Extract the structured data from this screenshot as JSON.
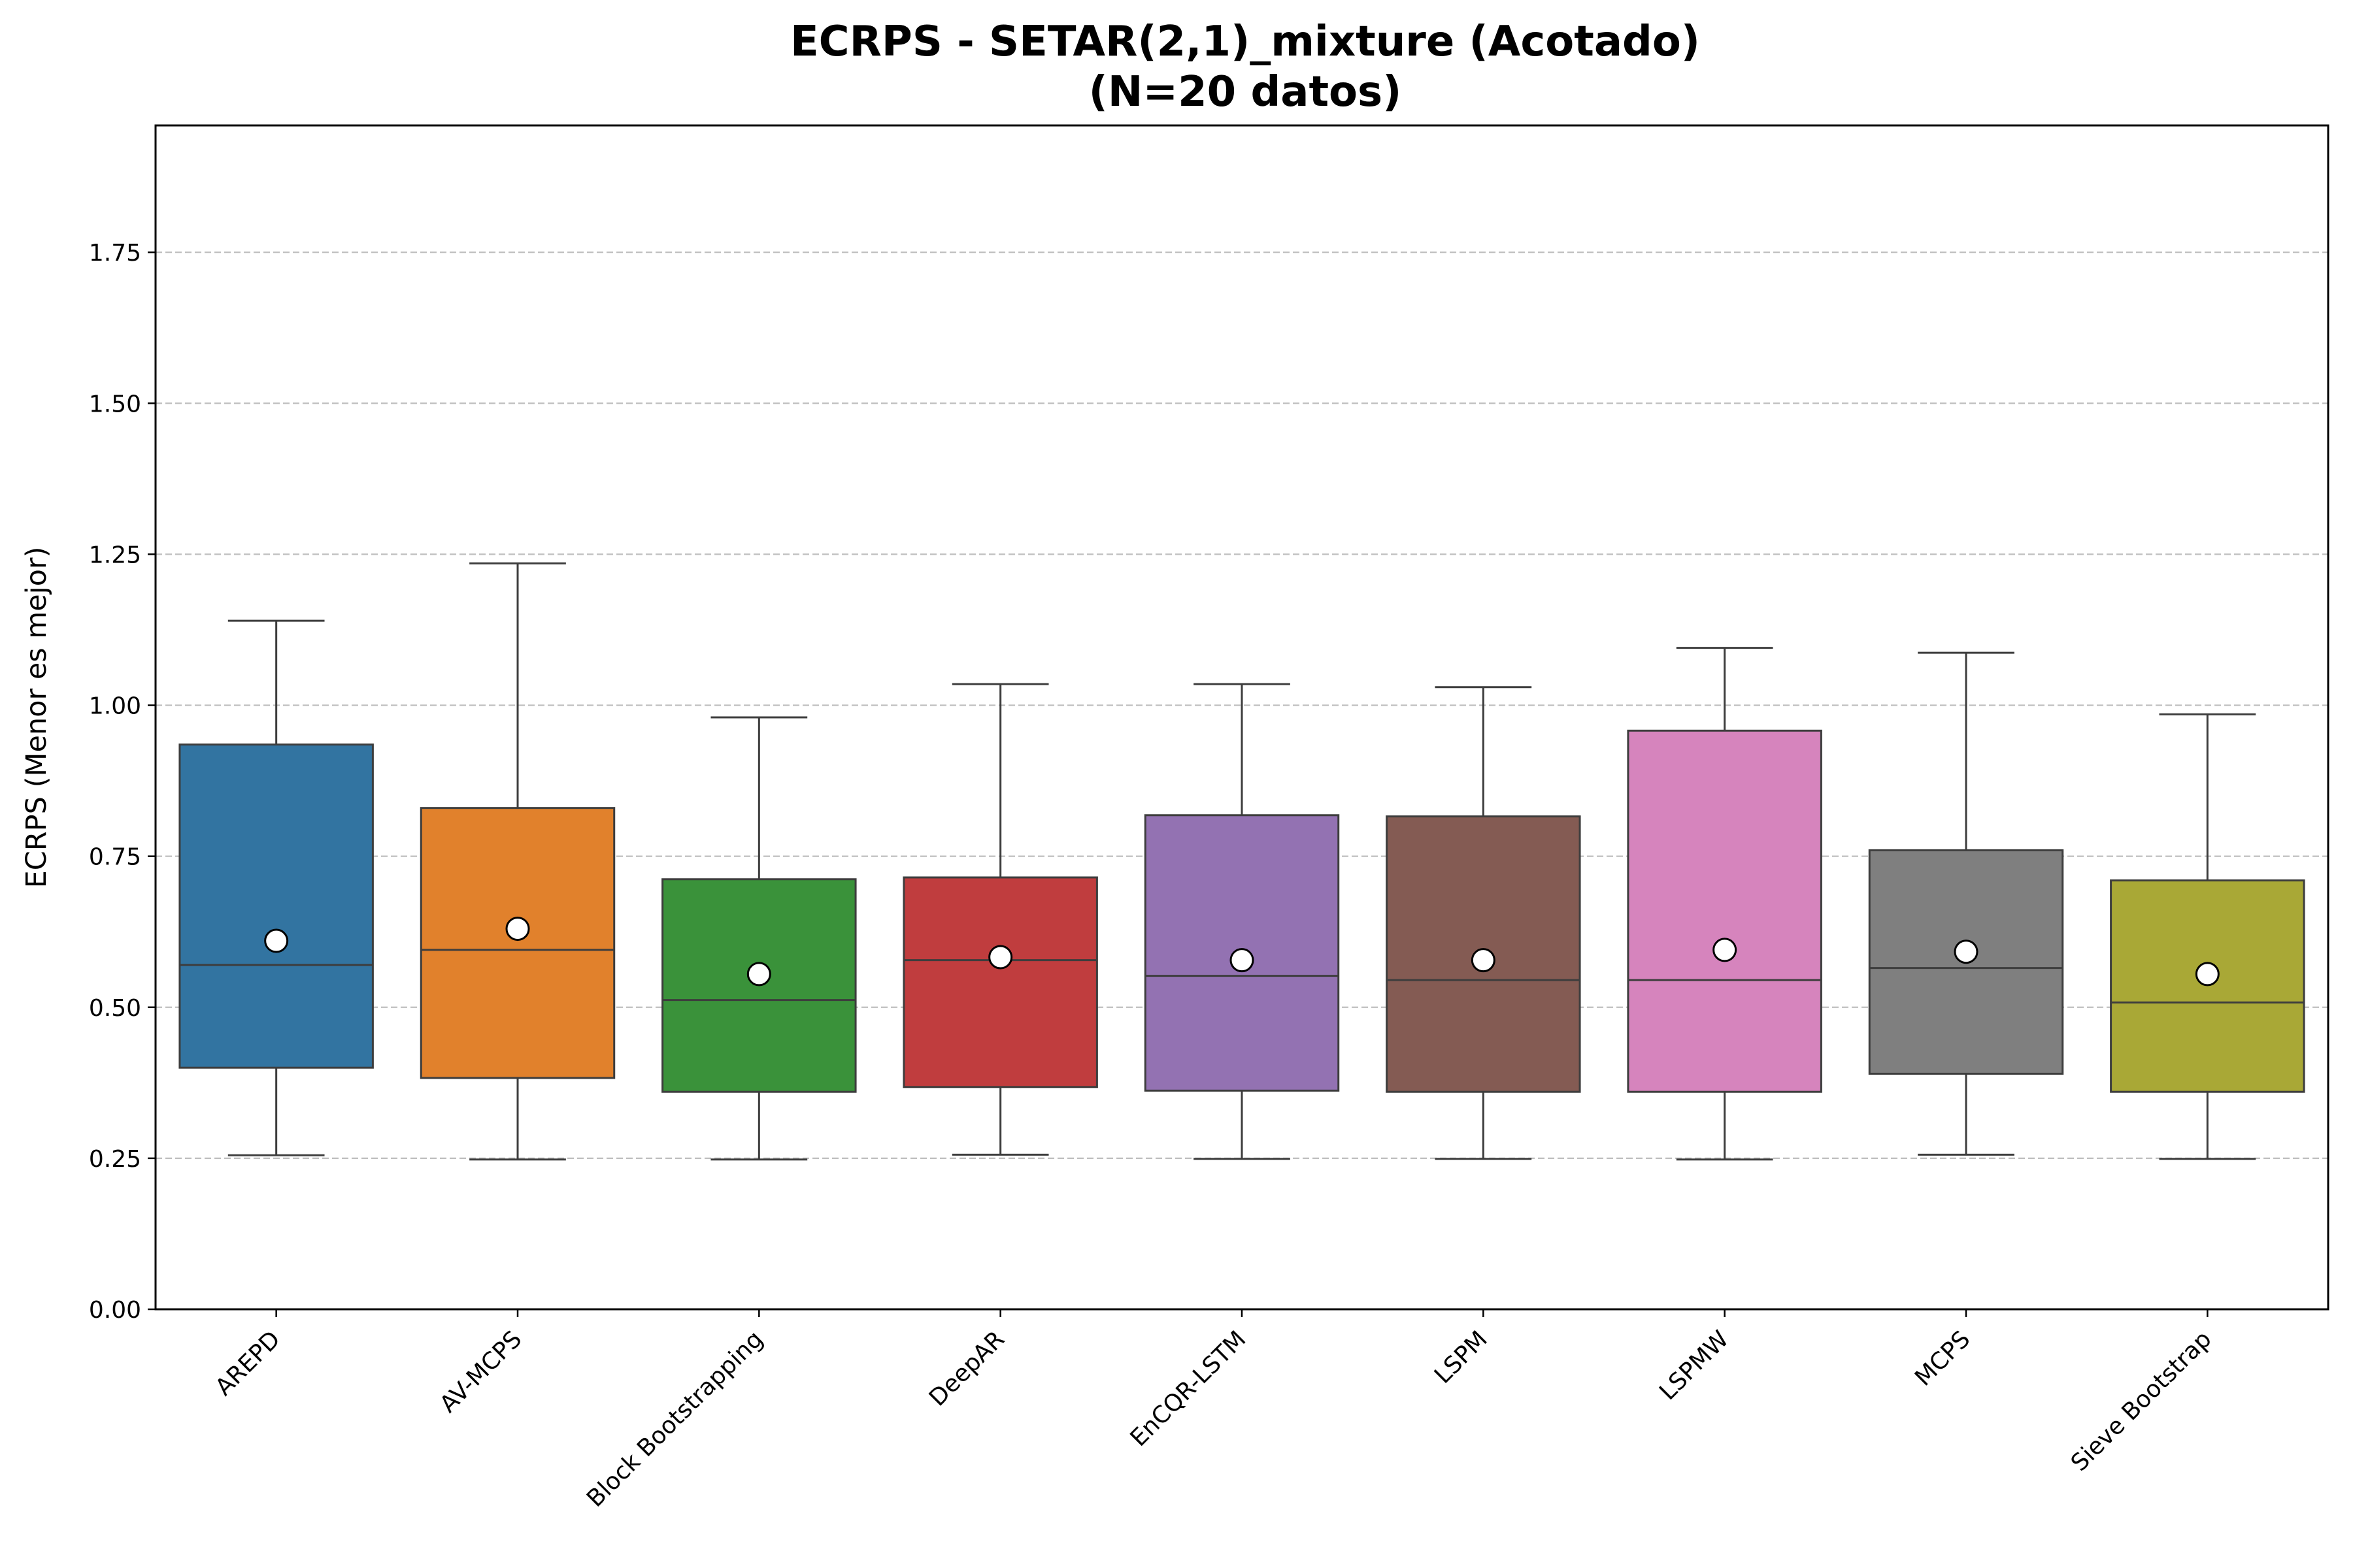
{
  "chart_data": {
    "type": "box",
    "title_line1": "ECRPS - SETAR(2,1)_mixture (Acotado)",
    "title_line2": "(N=20 datos)",
    "xlabel": "",
    "ylabel": "ECRPS (Menor es mejor)",
    "ylim": [
      0,
      1.96
    ],
    "yticks": [
      "0.00",
      "0.25",
      "0.50",
      "0.75",
      "1.00",
      "1.25",
      "1.50",
      "1.75"
    ],
    "grid": "y-dashed",
    "categories": [
      "AREPD",
      "AV-MCPS",
      "Block Bootstrapping",
      "DeepAR",
      "EnCQR-LSTM",
      "LSPM",
      "LSPMW",
      "MCPS",
      "Sieve Bootstrap"
    ],
    "boxes": [
      {
        "whisker_low": 0.255,
        "q1": 0.4,
        "median": 0.57,
        "q3": 0.935,
        "whisker_high": 1.14,
        "mean": 0.61,
        "color": "#3274a1"
      },
      {
        "whisker_low": 0.248,
        "q1": 0.383,
        "median": 0.595,
        "q3": 0.83,
        "whisker_high": 1.235,
        "mean": 0.63,
        "color": "#e1812c"
      },
      {
        "whisker_low": 0.248,
        "q1": 0.36,
        "median": 0.512,
        "q3": 0.712,
        "whisker_high": 0.98,
        "mean": 0.555,
        "color": "#3a923a"
      },
      {
        "whisker_low": 0.256,
        "q1": 0.368,
        "median": 0.578,
        "q3": 0.715,
        "whisker_high": 1.035,
        "mean": 0.583,
        "color": "#c03d3e"
      },
      {
        "whisker_low": 0.249,
        "q1": 0.362,
        "median": 0.552,
        "q3": 0.818,
        "whisker_high": 1.035,
        "mean": 0.578,
        "color": "#9372b2"
      },
      {
        "whisker_low": 0.249,
        "q1": 0.36,
        "median": 0.545,
        "q3": 0.816,
        "whisker_high": 1.03,
        "mean": 0.578,
        "color": "#845b53"
      },
      {
        "whisker_low": 0.248,
        "q1": 0.36,
        "median": 0.545,
        "q3": 0.958,
        "whisker_high": 1.095,
        "mean": 0.595,
        "color": "#d684bd"
      },
      {
        "whisker_low": 0.256,
        "q1": 0.39,
        "median": 0.565,
        "q3": 0.76,
        "whisker_high": 1.087,
        "mean": 0.592,
        "color": "#7f7f7f"
      },
      {
        "whisker_low": 0.249,
        "q1": 0.36,
        "median": 0.508,
        "q3": 0.71,
        "whisker_high": 0.985,
        "mean": 0.555,
        "color": "#a9a836"
      }
    ]
  }
}
